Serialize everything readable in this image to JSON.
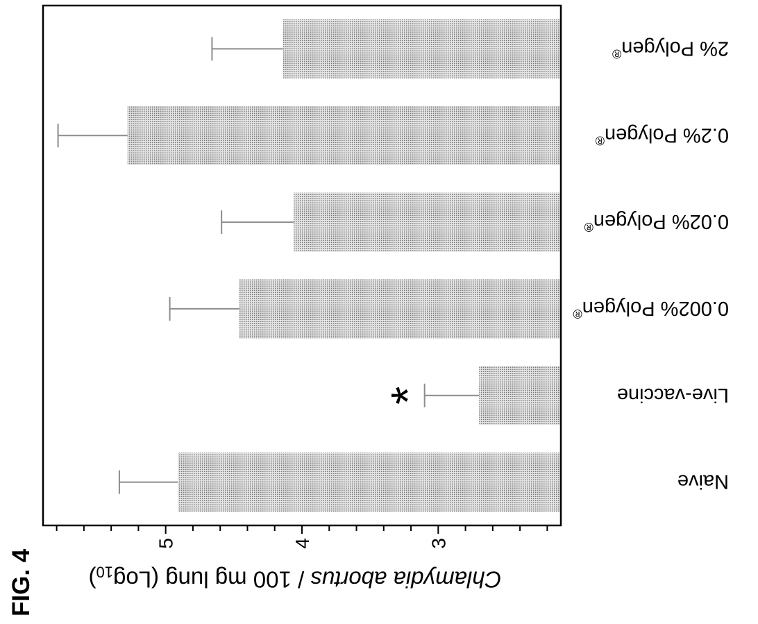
{
  "figure": {
    "label": "FIG. 4"
  },
  "chart_data": {
    "type": "bar",
    "ylabel": "Chlamydia abortus / 100 mg lung (Log10)",
    "categories": [
      "Naive",
      "Live-vaccine",
      "0.002% Polygen®",
      "0.02% Polygen®",
      "0.2% Polygen®",
      "2% Polygen®"
    ],
    "values": [
      4.91,
      2.7,
      4.46,
      4.06,
      5.28,
      4.14
    ],
    "error_upper": [
      0.43,
      0.4,
      0.51,
      0.53,
      0.51,
      0.52
    ],
    "ylim": [
      2.1,
      5.9
    ],
    "yticks": [
      3,
      4,
      5
    ],
    "yminor_step": 0.2,
    "grid": false,
    "annotations": [
      {
        "category": "Live-vaccine",
        "text": "*"
      }
    ],
    "colors": {
      "bar_fill": "#e4e4e4",
      "bar_dots": "#7a7a7a",
      "error_bars": "#8c8c8c",
      "axis": "#000000"
    }
  }
}
